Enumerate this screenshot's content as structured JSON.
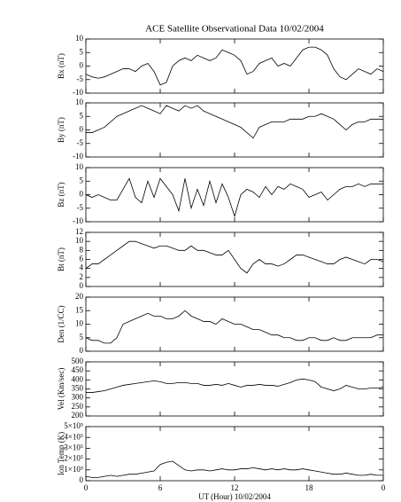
{
  "title": "ACE Satellite Observational Data   10/02/2004",
  "x_label": "UT (Hour)  10/02/2004",
  "x": [
    0,
    0.5,
    1,
    1.5,
    2,
    2.5,
    3,
    3.5,
    4,
    4.5,
    5,
    5.5,
    6,
    6.5,
    7,
    7.5,
    8,
    8.5,
    9,
    9.5,
    10,
    10.5,
    11,
    11.5,
    12,
    12.5,
    13,
    13.5,
    14,
    14.5,
    15,
    15.5,
    16,
    16.5,
    17,
    17.5,
    18,
    18.5,
    19,
    19.5,
    20,
    20.5,
    21,
    21.5,
    22,
    22.5,
    23,
    23.5,
    24
  ],
  "xlim": [
    0,
    24
  ],
  "xticks": [
    0,
    6,
    12,
    18,
    {
      "value": 24,
      "label": "0"
    }
  ],
  "chart_data": [
    {
      "type": "line",
      "ylabel": "Bx (nT)",
      "color": "#000000",
      "ylim": [
        -10,
        10
      ],
      "yticks": [
        -10,
        -5,
        0,
        5,
        10
      ],
      "values": [
        -3,
        -4,
        -4.5,
        -4,
        -3,
        -2,
        -1,
        -1,
        -2,
        0,
        1,
        -2,
        -7,
        -6,
        0,
        2,
        3,
        2,
        4,
        3,
        2,
        3,
        6,
        5,
        4,
        2,
        -3,
        -2,
        1,
        2,
        3,
        0,
        1,
        0,
        3,
        6,
        7,
        7,
        6,
        4,
        -1,
        -4,
        -5,
        -3,
        -1,
        -2,
        -3,
        -1,
        -2
      ]
    },
    {
      "type": "line",
      "ylabel": "By (nT)",
      "color": "#000000",
      "ylim": [
        -10,
        10
      ],
      "yticks": [
        -10,
        -5,
        0,
        5,
        10
      ],
      "values": [
        -1,
        -1,
        0,
        1,
        3,
        5,
        6,
        7,
        8,
        9,
        8,
        7,
        6,
        9,
        8,
        7,
        9,
        8,
        9,
        7,
        6,
        5,
        4,
        3,
        2,
        1,
        -1,
        -3,
        1,
        2,
        3,
        3,
        3,
        4,
        4,
        4,
        5,
        5,
        6,
        5,
        4,
        2,
        0,
        2,
        3,
        3,
        4,
        4,
        4
      ]
    },
    {
      "type": "line",
      "ylabel": "Bz (nT)",
      "color": "#000000",
      "ylim": [
        -10,
        10
      ],
      "yticks": [
        -10,
        -5,
        0,
        5,
        10
      ],
      "values": [
        0,
        -1,
        0,
        -1,
        -2,
        -2,
        2,
        6,
        -1,
        -3,
        5,
        -1,
        6,
        3,
        0,
        -6,
        6,
        -5,
        2,
        -4,
        5,
        -3,
        4,
        -1,
        -8,
        0,
        2,
        1,
        -1,
        3,
        0,
        3,
        2,
        4,
        3,
        2,
        -1,
        0,
        1,
        -2,
        0,
        2,
        3,
        3,
        4,
        3,
        4,
        4,
        4
      ]
    },
    {
      "type": "line",
      "ylabel": "Bt (nT)",
      "color": "#000000",
      "ylim": [
        0,
        12
      ],
      "yticks": [
        0,
        2,
        4,
        6,
        8,
        10,
        12
      ],
      "values": [
        4,
        5,
        5,
        6,
        7,
        8,
        9,
        10,
        10,
        9.5,
        9,
        8.5,
        9,
        9,
        8.5,
        8,
        8,
        9,
        8,
        8,
        7.5,
        7,
        7,
        8,
        6,
        4,
        3,
        5,
        6,
        5,
        5,
        4.5,
        5,
        6,
        7,
        7,
        6.5,
        6,
        5.5,
        5,
        5,
        6,
        6.5,
        6,
        5.5,
        5,
        6,
        6,
        5.5
      ]
    },
    {
      "type": "line",
      "ylabel": "Den (1/CC)",
      "color": "#000000",
      "ylim": [
        0,
        20
      ],
      "yticks": [
        0,
        5,
        10,
        15,
        20
      ],
      "values": [
        5,
        4,
        4,
        3,
        3,
        5,
        10,
        11,
        12,
        13,
        14,
        13,
        13,
        12,
        12,
        13,
        15,
        13,
        12,
        11,
        11,
        10,
        12,
        11,
        10,
        10,
        9,
        8,
        8,
        7,
        6,
        6,
        5,
        5,
        4,
        4,
        5,
        5,
        4,
        4,
        5,
        4,
        4,
        5,
        5,
        5,
        5,
        6,
        6
      ]
    },
    {
      "type": "line",
      "ylabel": "Vel (Km/sec)",
      "color": "#000000",
      "ylim": [
        200,
        500
      ],
      "yticks": [
        200,
        250,
        300,
        350,
        400,
        450,
        500
      ],
      "values": [
        330,
        330,
        335,
        340,
        350,
        360,
        370,
        375,
        380,
        385,
        390,
        395,
        390,
        380,
        380,
        385,
        385,
        380,
        380,
        370,
        370,
        375,
        370,
        380,
        370,
        360,
        370,
        370,
        375,
        370,
        370,
        365,
        375,
        385,
        400,
        405,
        400,
        390,
        360,
        350,
        340,
        350,
        370,
        360,
        350,
        350,
        355,
        355,
        360
      ]
    },
    {
      "type": "line",
      "ylabel": "Ion Temp (K)",
      "color": "#000000",
      "ylim": [
        0,
        500000
      ],
      "yticks": [
        0,
        {
          "value": 100000,
          "label": "1×10⁵"
        },
        {
          "value": 200000,
          "label": "2×10⁵"
        },
        {
          "value": 300000,
          "label": "3×10⁵"
        },
        {
          "value": 400000,
          "label": "4×10⁵"
        },
        {
          "value": 500000,
          "label": "5×10⁵"
        }
      ],
      "values": [
        40000,
        30000,
        30000,
        40000,
        50000,
        40000,
        50000,
        60000,
        60000,
        70000,
        80000,
        90000,
        150000,
        170000,
        180000,
        140000,
        100000,
        90000,
        100000,
        100000,
        90000,
        100000,
        110000,
        100000,
        100000,
        110000,
        110000,
        120000,
        110000,
        100000,
        110000,
        100000,
        110000,
        100000,
        100000,
        110000,
        100000,
        90000,
        80000,
        70000,
        60000,
        60000,
        70000,
        60000,
        50000,
        50000,
        60000,
        50000,
        50000
      ]
    }
  ]
}
